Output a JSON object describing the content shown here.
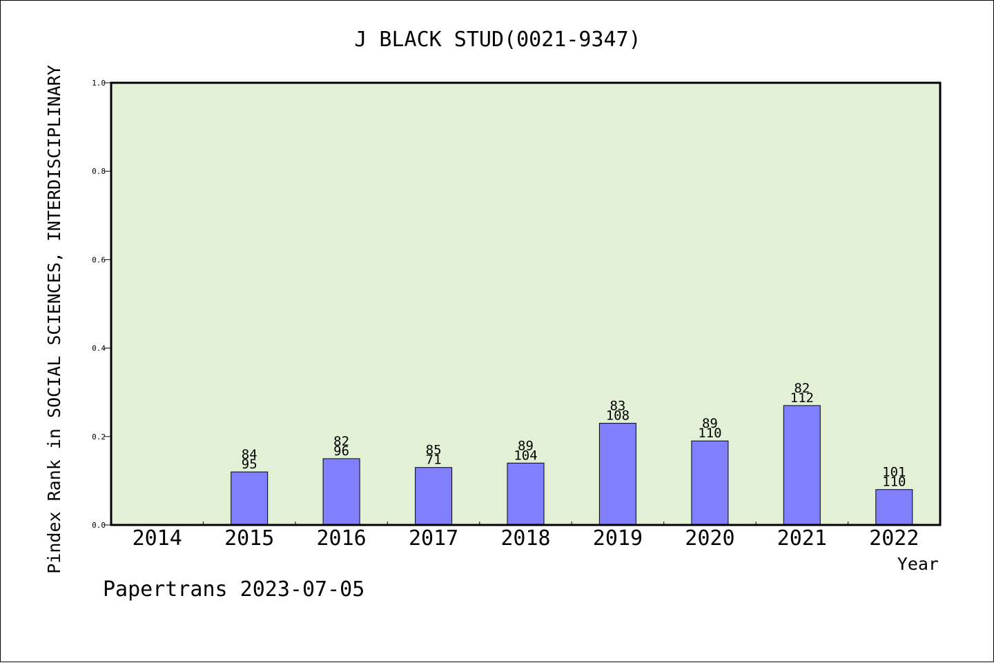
{
  "chart_data": {
    "type": "bar",
    "title": "J BLACK STUD(0021-9347)",
    "xlabel": "Year",
    "ylabel": "Pindex Rank in SOCIAL SCIENCES, INTERDISCIPLINARY",
    "categories": [
      "2014",
      "2015",
      "2016",
      "2017",
      "2018",
      "2019",
      "2020",
      "2021",
      "2022"
    ],
    "values": [
      null,
      0.12,
      0.15,
      0.13,
      0.14,
      0.23,
      0.19,
      0.27,
      0.08
    ],
    "bar_labels": [
      [
        "",
        ""
      ],
      [
        "84",
        "95"
      ],
      [
        "82",
        "96"
      ],
      [
        "85",
        "71"
      ],
      [
        "89",
        "104"
      ],
      [
        "83",
        "108"
      ],
      [
        "89",
        "110"
      ],
      [
        "82",
        "112"
      ],
      [
        "101",
        "110"
      ]
    ],
    "ylim": [
      0,
      1.0
    ],
    "yticks": [
      "0.0",
      "0.2",
      "0.4",
      "0.6",
      "0.8",
      "1.0"
    ],
    "grid": false,
    "colors": {
      "plot_background": "#e2f0d6",
      "bar_fill": "#8080ff",
      "bar_stroke": "#000000"
    }
  },
  "footer": "Papertrans 2023-07-05"
}
